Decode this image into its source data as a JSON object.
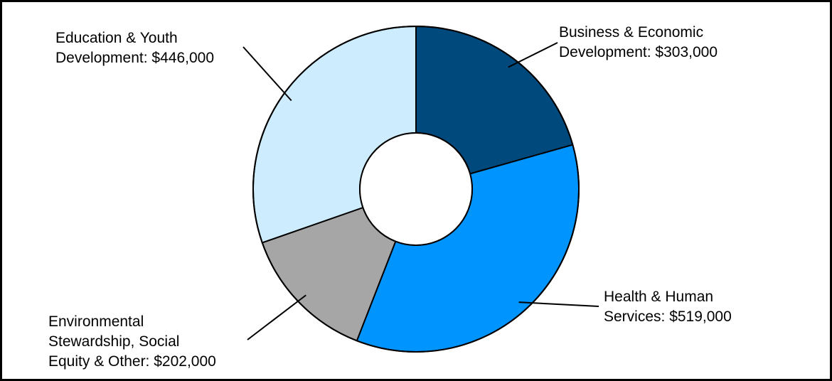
{
  "chart_data": {
    "type": "pie",
    "variant": "donut",
    "title": "",
    "start_angle_deg": 0,
    "direction": "clockwise",
    "slices": [
      {
        "category": "Business & Economic Development",
        "value": 303000,
        "label_lines": [
          "Business & Economic",
          "Development: $303,000"
        ],
        "color": "#00497d"
      },
      {
        "category": "Health & Human Services",
        "value": 519000,
        "label_lines": [
          "Health & Human",
          "Services: $519,000"
        ],
        "color": "#0094ff"
      },
      {
        "category": "Environmental Stewardship, Social Equity & Other",
        "value": 202000,
        "label_lines": [
          "Environmental",
          "Stewardship, Social",
          "Equity & Other: $202,000"
        ],
        "color": "#a6a6a6"
      },
      {
        "category": "Education & Youth Development",
        "value": 446000,
        "label_lines": [
          "Education & Youth",
          "Development: $446,000"
        ],
        "color": "#cdecfd"
      }
    ],
    "legend": "none",
    "label_style": "outside with leader lines"
  }
}
